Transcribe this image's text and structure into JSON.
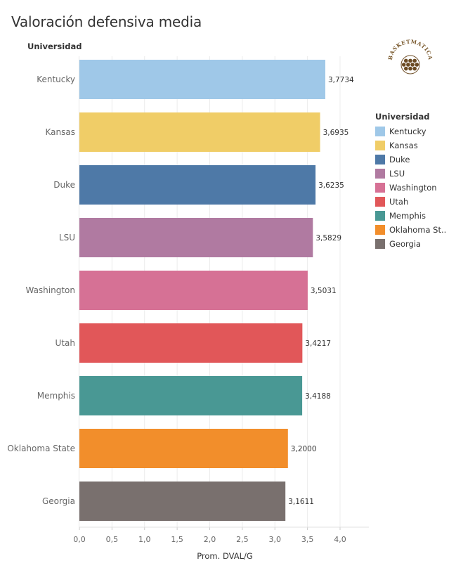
{
  "title": "Valoración defensiva media",
  "row_header": "Universidad",
  "x_axis_title": "Prom. DVAL/G",
  "logo_text": "BASKETMATICA",
  "legend": {
    "title": "Universidad",
    "items": [
      {
        "label": "Kentucky",
        "color": "#9fc8e8"
      },
      {
        "label": "Kansas",
        "color": "#f0cd67"
      },
      {
        "label": "Duke",
        "color": "#4e79a7"
      },
      {
        "label": "LSU",
        "color": "#b07aa1"
      },
      {
        "label": "Washington",
        "color": "#d67195"
      },
      {
        "label": "Utah",
        "color": "#e15759"
      },
      {
        "label": "Memphis",
        "color": "#499894"
      },
      {
        "label": "Oklahoma St..",
        "color": "#f28e2b"
      },
      {
        "label": "Georgia",
        "color": "#79706e"
      }
    ]
  },
  "chart_data": {
    "type": "bar",
    "orientation": "horizontal",
    "title": "Valoración defensiva media",
    "xlabel": "Prom. DVAL/G",
    "ylabel": "Universidad",
    "categories": [
      "Kentucky",
      "Kansas",
      "Duke",
      "LSU",
      "Washington",
      "Utah",
      "Memphis",
      "Oklahoma State",
      "Georgia"
    ],
    "values": [
      3.7734,
      3.6935,
      3.6235,
      3.5829,
      3.5031,
      3.4217,
      3.4188,
      3.2,
      3.1611
    ],
    "value_labels": [
      "3,7734",
      "3,6935",
      "3,6235",
      "3,5829",
      "3,5031",
      "3,4217",
      "3,4188",
      "3,2000",
      "3,1611"
    ],
    "colors": [
      "#9fc8e8",
      "#f0cd67",
      "#4e79a7",
      "#b07aa1",
      "#d67195",
      "#e15759",
      "#499894",
      "#f28e2b",
      "#79706e"
    ],
    "xlim": [
      0,
      4.4
    ],
    "xticks": [
      0,
      0.5,
      1.0,
      1.5,
      2.0,
      2.5,
      3.0,
      3.5,
      4.0
    ],
    "xtick_labels": [
      "0,0",
      "0,5",
      "1,0",
      "1,5",
      "2,0",
      "2,5",
      "3,0",
      "3,5",
      "4,0"
    ],
    "grid": true,
    "legend_position": "right"
  }
}
